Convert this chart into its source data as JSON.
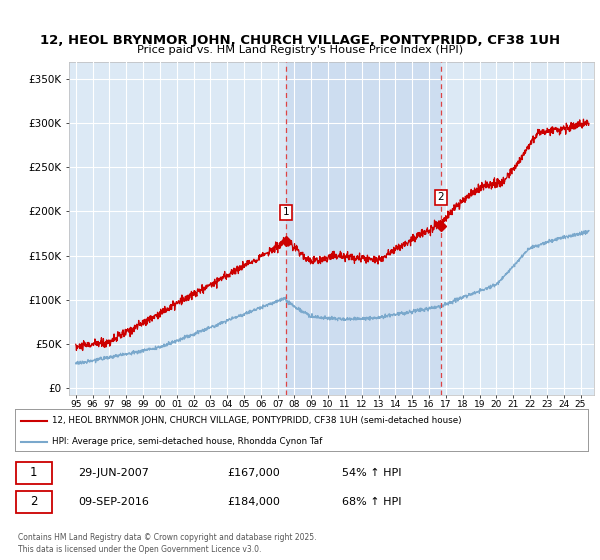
{
  "title_line1": "12, HEOL BRYNMOR JOHN, CHURCH VILLAGE, PONTYPRIDD, CF38 1UH",
  "title_line2": "Price paid vs. HM Land Registry's House Price Index (HPI)",
  "background_color": "#ffffff",
  "plot_bg_color": "#dce9f5",
  "shade_color": "#c8d8ee",
  "grid_color": "#ffffff",
  "red_line_color": "#cc0000",
  "blue_line_color": "#7aa8cc",
  "purchase1_date_x": 2007.49,
  "purchase1_price": 167000,
  "purchase1_label": "1",
  "purchase2_date_x": 2016.69,
  "purchase2_price": 184000,
  "purchase2_label": "2",
  "vline_color": "#dd4444",
  "annotation_box_edgecolor": "#cc0000",
  "annotation_box_facecolor": "#ffffff",
  "annotation_text_color": "#000000",
  "ylim_max": 370000,
  "ylim_min": -8000,
  "xlim_min": 1994.6,
  "xlim_max": 2025.8,
  "legend_red": "12, HEOL BRYNMOR JOHN, CHURCH VILLAGE, PONTYPRIDD, CF38 1UH (semi-detached house)",
  "legend_blue": "HPI: Average price, semi-detached house, Rhondda Cynon Taf",
  "footnote": "Contains HM Land Registry data © Crown copyright and database right 2025.\nThis data is licensed under the Open Government Licence v3.0."
}
